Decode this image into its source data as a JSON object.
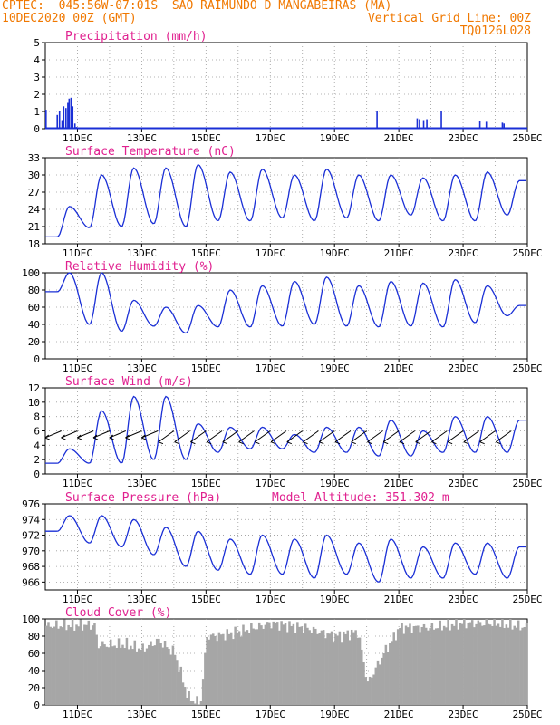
{
  "header": {
    "line1": "CPTEC:  045:56W-07:01S  SAO RAIMUNDO D MANGABEIRAS (MA)",
    "line2_left": "10DEC2020 00Z (GMT)",
    "line2_right": "Vertical Grid Line: 00Z",
    "line3_right": "TQ0126L028"
  },
  "colors": {
    "header": "#f07800",
    "title": "#e0208f",
    "series": "#1a2fd6",
    "cloud": "#a6a6a6",
    "grid": "#9a9a9a"
  },
  "x_axis": {
    "start": "10DEC2020 00Z",
    "end": "25DEC2020 00Z",
    "labels": [
      "11DEC",
      "13DEC",
      "15DEC",
      "17DEC",
      "19DEC",
      "21DEC",
      "23DEC",
      "25DEC"
    ],
    "label_days": [
      1,
      3,
      5,
      7,
      9,
      11,
      13,
      15
    ]
  },
  "chart_data": [
    {
      "type": "bar",
      "title": "Precipitation (mm/h)",
      "ylim": [
        0,
        5
      ],
      "yticks": [
        0,
        1,
        2,
        3,
        4,
        5
      ],
      "x_unit": "days since 10DEC2020 00Z",
      "x": [
        0.0,
        0.35,
        0.42,
        0.5,
        0.55,
        0.62,
        0.68,
        0.72,
        0.78,
        0.83,
        0.9,
        0.95,
        10.3,
        11.55,
        11.62,
        11.75,
        11.85,
        12.3,
        13.5,
        13.7,
        14.2,
        14.25
      ],
      "values": [
        1.1,
        0.8,
        1.0,
        0.5,
        1.3,
        1.2,
        1.5,
        1.75,
        1.8,
        1.3,
        0.3,
        0.1,
        1.0,
        0.6,
        0.55,
        0.5,
        0.55,
        1.0,
        0.45,
        0.4,
        0.35,
        0.3
      ]
    },
    {
      "type": "line",
      "title": "Surface Temperature (nC)",
      "ylim": [
        18,
        33
      ],
      "yticks": [
        18,
        21,
        24,
        27,
        30,
        33
      ],
      "series": [
        {
          "daily_min": [
            19.2,
            20.8,
            21.0,
            21.5,
            21.0,
            22.0,
            22.0,
            22.5,
            22.0,
            22.5,
            22.0,
            23.0,
            22.0,
            22.0,
            23.0
          ],
          "daily_max": [
            24.5,
            30.0,
            31.2,
            31.2,
            31.8,
            30.5,
            31.0,
            30.0,
            31.0,
            30.0,
            30.0,
            29.5,
            30.0,
            30.5,
            29.0
          ]
        }
      ]
    },
    {
      "type": "line",
      "title": "Relative Humidity (%)",
      "ylim": [
        0,
        100
      ],
      "yticks": [
        0,
        20,
        40,
        60,
        80,
        100
      ],
      "series": [
        {
          "daily_min": [
            78,
            40,
            32,
            38,
            30,
            37,
            37,
            38,
            40,
            38,
            37,
            38,
            37,
            42,
            50
          ],
          "daily_max": [
            100,
            100,
            68,
            60,
            62,
            80,
            85,
            90,
            95,
            85,
            90,
            88,
            92,
            85,
            62
          ]
        }
      ]
    },
    {
      "type": "line",
      "title": "Surface Wind (m/s)",
      "ylim": [
        0,
        12
      ],
      "yticks": [
        0,
        2,
        4,
        6,
        8,
        10,
        12
      ],
      "series": [
        {
          "daily_min": [
            1.5,
            1.5,
            1.5,
            2.0,
            2.0,
            3.0,
            3.5,
            3.5,
            3.0,
            3.0,
            2.5,
            2.5,
            3.0,
            3.0,
            3.0
          ],
          "daily_max": [
            3.5,
            8.8,
            10.8,
            10.8,
            7.0,
            6.5,
            6.5,
            5.5,
            6.5,
            6.5,
            7.5,
            6.0,
            8.0,
            8.0,
            7.5
          ]
        }
      ],
      "wind_vectors": "from east-northeast, roughly every 12 h"
    },
    {
      "type": "line",
      "title": "Surface Pressure (hPa)",
      "subtitle": "Model Altitude: 351.302 m",
      "ylim": [
        965,
        976
      ],
      "yticks": [
        966,
        968,
        970,
        972,
        974,
        976
      ],
      "series": [
        {
          "daily_min": [
            972.5,
            971.0,
            970.5,
            969.5,
            968.0,
            967.5,
            967.0,
            967.0,
            966.5,
            967.0,
            966.0,
            966.5,
            966.5,
            967.0,
            966.5
          ],
          "daily_max": [
            974.5,
            974.5,
            974.0,
            973.0,
            972.5,
            971.5,
            972.0,
            971.5,
            972.0,
            971.0,
            971.5,
            970.5,
            971.0,
            971.0,
            970.5
          ]
        }
      ]
    },
    {
      "type": "area",
      "title": "Cloud Cover (%)",
      "ylim": [
        0,
        100
      ],
      "yticks": [
        0,
        20,
        40,
        60,
        80,
        100
      ],
      "x": [
        0,
        1.5,
        1.6,
        2.5,
        3.0,
        3.5,
        4.0,
        4.4,
        4.6,
        4.8,
        5.0,
        5.3,
        6.0,
        7.0,
        8.0,
        9.0,
        9.7,
        10.0,
        10.5,
        11.0,
        12.0,
        13.0,
        14.0,
        15.0
      ],
      "values": [
        92,
        93,
        70,
        70,
        65,
        75,
        60,
        10,
        5,
        2,
        80,
        80,
        85,
        95,
        90,
        80,
        85,
        25,
        60,
        90,
        90,
        95,
        95,
        90
      ]
    }
  ]
}
